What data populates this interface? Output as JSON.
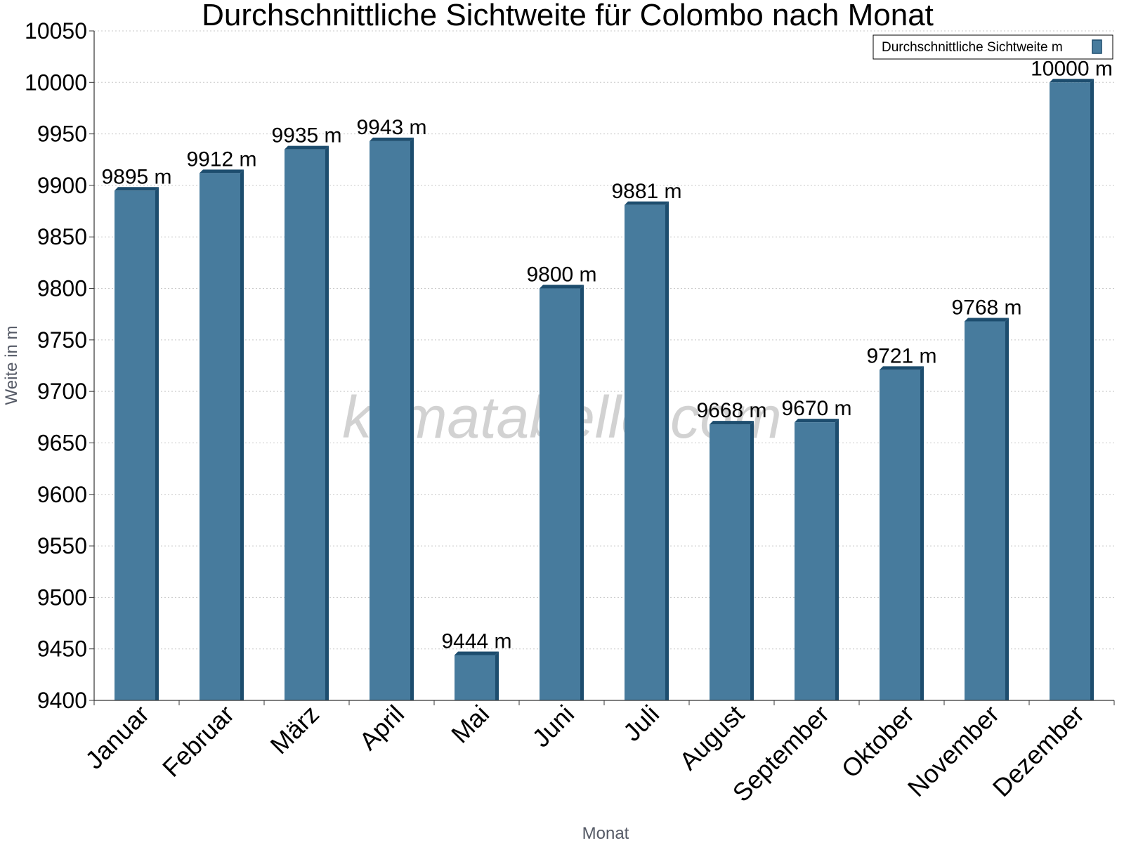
{
  "chart_data": {
    "type": "bar",
    "title": "Durchschnittliche Sichtweite für Colombo nach Monat",
    "xlabel": "Monat",
    "ylabel": "Weite in m",
    "categories": [
      "Januar",
      "Februar",
      "März",
      "April",
      "Mai",
      "Juni",
      "Juli",
      "August",
      "September",
      "Oktober",
      "November",
      "Dezember"
    ],
    "series": [
      {
        "name": "Durchschnittliche Sichtweite m",
        "values": [
          9895,
          9912,
          9935,
          9943,
          9444,
          9800,
          9881,
          9668,
          9670,
          9721,
          9768,
          10000
        ]
      }
    ],
    "data_labels": [
      "9895 m",
      "9912 m",
      "9935 m",
      "9943 m",
      "9444 m",
      "9800 m",
      "9881 m",
      "9668 m",
      "9670 m",
      "9721 m",
      "9768 m",
      "10000 m"
    ],
    "yticks": [
      9400,
      9450,
      9500,
      9550,
      9600,
      9650,
      9700,
      9750,
      9800,
      9850,
      9900,
      9950,
      10000,
      10050
    ],
    "ylim": [
      9400,
      10050
    ],
    "grid": true,
    "legend_position": "top-right",
    "colors": {
      "bar": "#477b9d",
      "bar_dark": "#1d4d6e",
      "grid": "#c8c8c8",
      "axis": "#333333"
    },
    "watermark": "klimatabelle.com"
  }
}
